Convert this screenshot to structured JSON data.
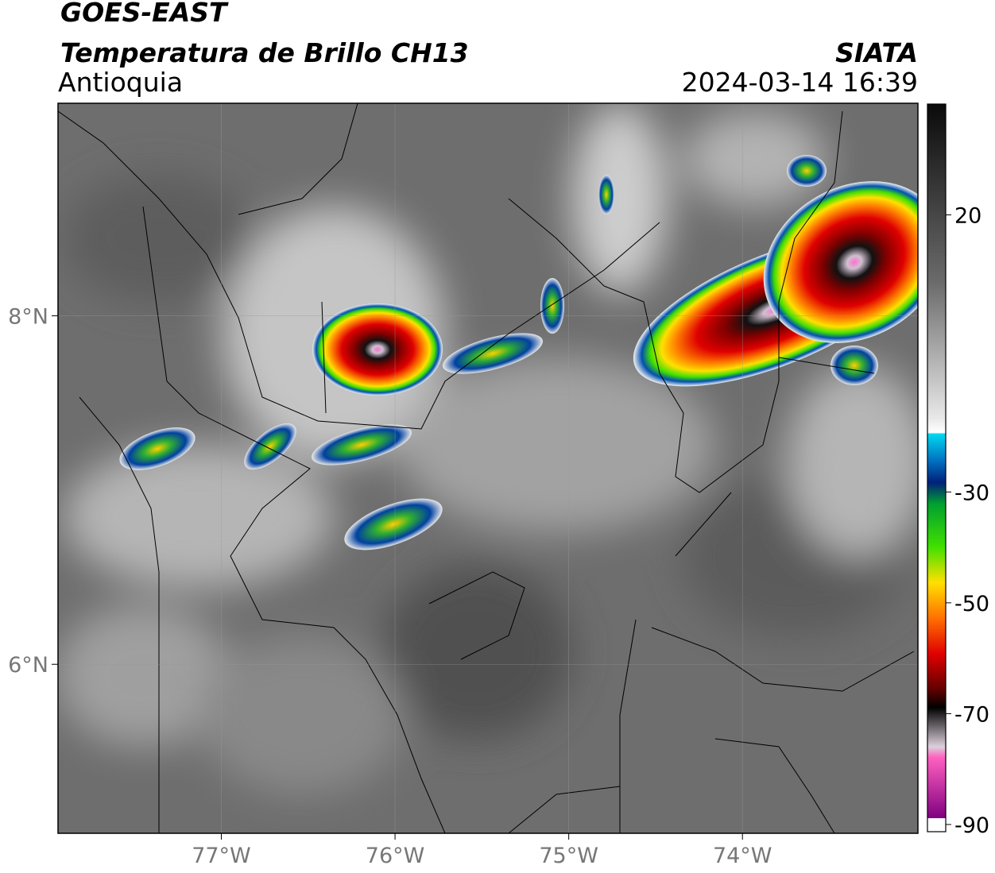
{
  "header": {
    "satellite": "GOES-EAST",
    "product": "Temperatura de Brillo CH13",
    "region": "Antioquia",
    "agency": "SIATA",
    "datetime": "2024-03-14 16:39"
  },
  "map": {
    "lon_range": [
      -77.94,
      -72.99
    ],
    "lat_range": [
      5.03,
      9.22
    ],
    "lon_ticks": [
      {
        "value": -77,
        "label": "77°W"
      },
      {
        "value": -76,
        "label": "76°W"
      },
      {
        "value": -75,
        "label": "75°W"
      },
      {
        "value": -74,
        "label": "74°W"
      }
    ],
    "lat_ticks": [
      {
        "value": 8,
        "label": "8°N"
      },
      {
        "value": 6,
        "label": "6°N"
      }
    ]
  },
  "colorbar": {
    "limits": [
      -91.3,
      40
    ],
    "ticks": [
      20,
      -30,
      -50,
      -70,
      -90
    ]
  }
}
